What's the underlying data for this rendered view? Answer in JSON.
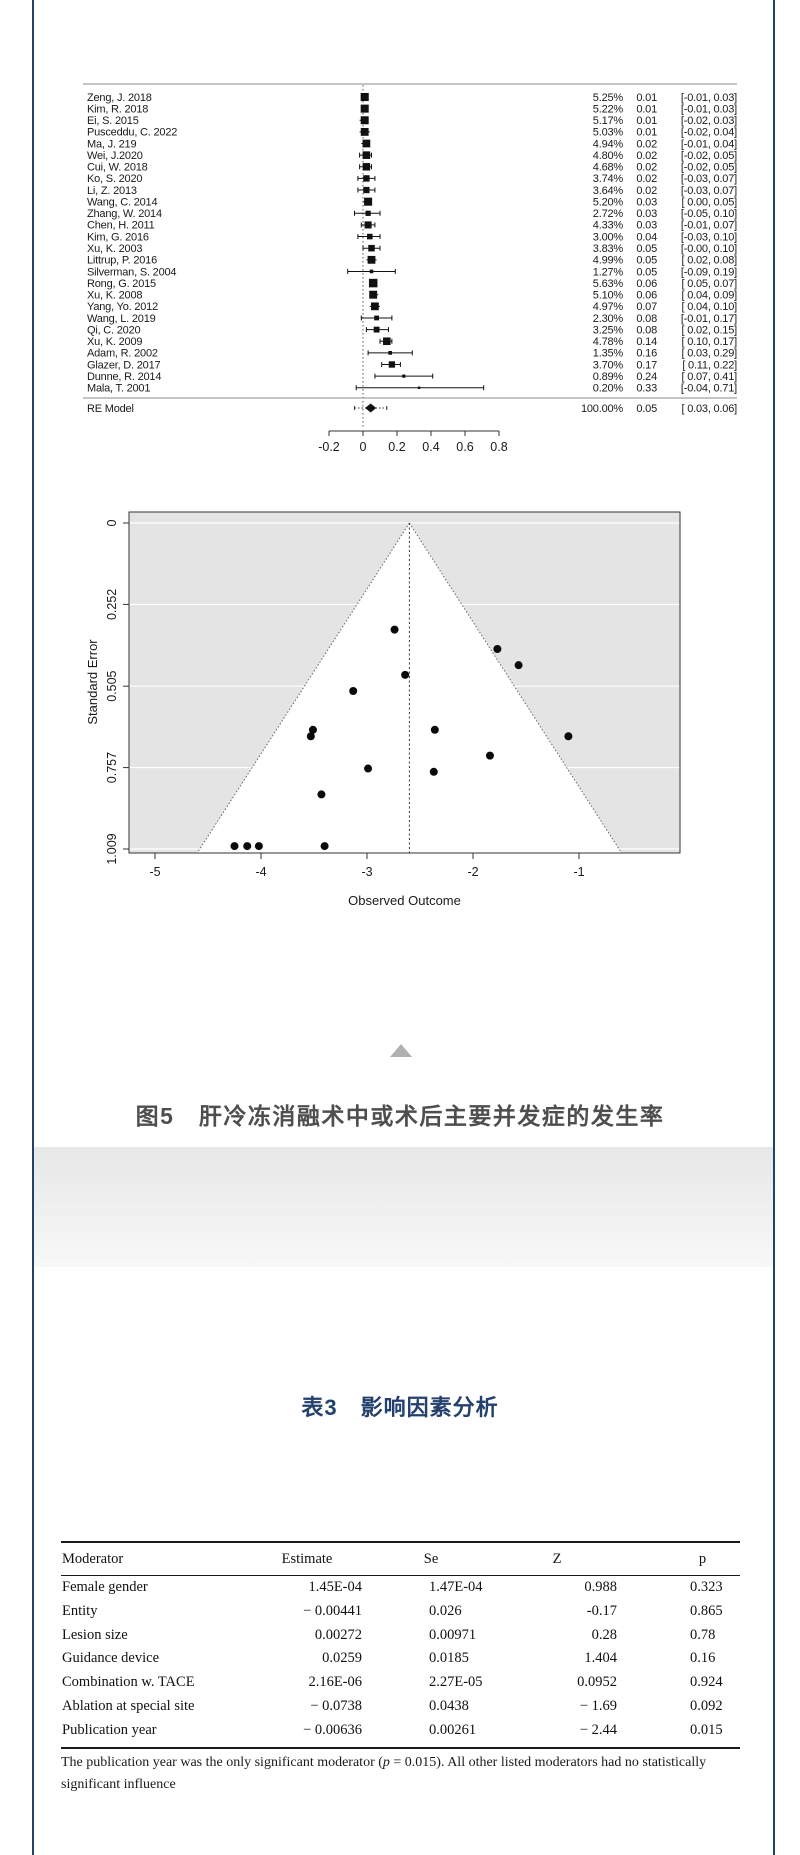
{
  "colors": {
    "accent_navy": "#24406d",
    "caption_gray": "#4e4e4e",
    "band_top": "#e7e7e7",
    "band_bottom": "#f8f8f8",
    "triangle_gray": "#b0b0b0"
  },
  "figure": {
    "caption": "图5　肝冷冻消融术中或术后主要并发症的发生率"
  },
  "table_section": {
    "title": "表3　影响因素分析"
  },
  "chart_data": [
    {
      "type": "forest",
      "xlim": [
        -0.2,
        0.8
      ],
      "xticks": [
        -0.2,
        0,
        0.2,
        0.4,
        0.6,
        0.8
      ],
      "zero_line": 0,
      "studies": [
        {
          "label": "Zeng, J. 2018",
          "weight": "5.25%",
          "est": 0.01,
          "est_text": "0.01",
          "ci": [
            -0.01,
            0.03
          ],
          "ci_text": "[-0.01, 0.03]"
        },
        {
          "label": "Kim, R. 2018",
          "weight": "5.22%",
          "est": 0.01,
          "est_text": "0.01",
          "ci": [
            -0.01,
            0.03
          ],
          "ci_text": "[-0.01, 0.03]"
        },
        {
          "label": "Ei, S. 2015",
          "weight": "5.17%",
          "est": 0.01,
          "est_text": "0.01",
          "ci": [
            -0.02,
            0.03
          ],
          "ci_text": "[-0.02, 0.03]"
        },
        {
          "label": "Pusceddu, C. 2022",
          "weight": "5.03%",
          "est": 0.01,
          "est_text": "0.01",
          "ci": [
            -0.02,
            0.04
          ],
          "ci_text": "[-0.02, 0.04]"
        },
        {
          "label": "Ma, J. 219",
          "weight": "4.94%",
          "est": 0.02,
          "est_text": "0.02",
          "ci": [
            -0.01,
            0.04
          ],
          "ci_text": "[-0.01, 0.04]"
        },
        {
          "label": "Wei, J.2020",
          "weight": "4.80%",
          "est": 0.02,
          "est_text": "0.02",
          "ci": [
            -0.02,
            0.05
          ],
          "ci_text": "[-0.02, 0.05]"
        },
        {
          "label": "Cui, W. 2018",
          "weight": "4.68%",
          "est": 0.02,
          "est_text": "0.02",
          "ci": [
            -0.02,
            0.05
          ],
          "ci_text": "[-0.02, 0.05]"
        },
        {
          "label": "Ko, S. 2020",
          "weight": "3.74%",
          "est": 0.02,
          "est_text": "0.02",
          "ci": [
            -0.03,
            0.07
          ],
          "ci_text": "[-0.03, 0.07]"
        },
        {
          "label": "Li, Z. 2013",
          "weight": "3.64%",
          "est": 0.02,
          "est_text": "0.02",
          "ci": [
            -0.03,
            0.07
          ],
          "ci_text": "[-0.03, 0.07]"
        },
        {
          "label": "Wang, C. 2014",
          "weight": "5.20%",
          "est": 0.03,
          "est_text": "0.03",
          "ci": [
            0.0,
            0.05
          ],
          "ci_text": "[ 0.00, 0.05]"
        },
        {
          "label": "Zhang, W. 2014",
          "weight": "2.72%",
          "est": 0.03,
          "est_text": "0.03",
          "ci": [
            -0.05,
            0.1
          ],
          "ci_text": "[-0.05, 0.10]"
        },
        {
          "label": "Chen, H. 2011",
          "weight": "4.33%",
          "est": 0.03,
          "est_text": "0.03",
          "ci": [
            -0.01,
            0.07
          ],
          "ci_text": "[-0.01, 0.07]"
        },
        {
          "label": "Kim, G. 2016",
          "weight": "3.00%",
          "est": 0.04,
          "est_text": "0.04",
          "ci": [
            -0.03,
            0.1
          ],
          "ci_text": "[-0.03, 0.10]"
        },
        {
          "label": "Xu, K. 2003",
          "weight": "3.83%",
          "est": 0.05,
          "est_text": "0.05",
          "ci": [
            0.0,
            0.1
          ],
          "ci_text": "[-0.00, 0.10]"
        },
        {
          "label": "Littrup, P. 2016",
          "weight": "4.99%",
          "est": 0.05,
          "est_text": "0.05",
          "ci": [
            0.02,
            0.08
          ],
          "ci_text": "[ 0.02, 0.08]"
        },
        {
          "label": "Silverman, S. 2004",
          "weight": "1.27%",
          "est": 0.05,
          "est_text": "0.05",
          "ci": [
            -0.09,
            0.19
          ],
          "ci_text": "[-0.09, 0.19]"
        },
        {
          "label": "Rong, G. 2015",
          "weight": "5.63%",
          "est": 0.06,
          "est_text": "0.06",
          "ci": [
            0.05,
            0.07
          ],
          "ci_text": "[ 0.05, 0.07]"
        },
        {
          "label": "Xu, K. 2008",
          "weight": "5.10%",
          "est": 0.06,
          "est_text": "0.06",
          "ci": [
            0.04,
            0.09
          ],
          "ci_text": "[ 0.04, 0.09]"
        },
        {
          "label": "Yang, Yo. 2012",
          "weight": "4.97%",
          "est": 0.07,
          "est_text": "0.07",
          "ci": [
            0.04,
            0.1
          ],
          "ci_text": "[ 0.04, 0.10]"
        },
        {
          "label": "Wang, L. 2019",
          "weight": "2.30%",
          "est": 0.08,
          "est_text": "0.08",
          "ci": [
            -0.01,
            0.17
          ],
          "ci_text": "[-0.01, 0.17]"
        },
        {
          "label": "Qi, C. 2020",
          "weight": "3.25%",
          "est": 0.08,
          "est_text": "0.08",
          "ci": [
            0.02,
            0.15
          ],
          "ci_text": "[ 0.02, 0.15]"
        },
        {
          "label": "Xu, K. 2009",
          "weight": "4.78%",
          "est": 0.14,
          "est_text": "0.14",
          "ci": [
            0.1,
            0.17
          ],
          "ci_text": "[ 0.10, 0.17]"
        },
        {
          "label": "Adam, R. 2002",
          "weight": "1.35%",
          "est": 0.16,
          "est_text": "0.16",
          "ci": [
            0.03,
            0.29
          ],
          "ci_text": "[ 0.03, 0.29]"
        },
        {
          "label": "Glazer, D. 2017",
          "weight": "3.70%",
          "est": 0.17,
          "est_text": "0.17",
          "ci": [
            0.11,
            0.22
          ],
          "ci_text": "[ 0.11, 0.22]"
        },
        {
          "label": "Dunne, R. 2014",
          "weight": "0.89%",
          "est": 0.24,
          "est_text": "0.24",
          "ci": [
            0.07,
            0.41
          ],
          "ci_text": "[ 0.07, 0.41]"
        },
        {
          "label": "Mala, T. 2001",
          "weight": "0.20%",
          "est": 0.33,
          "est_text": "0.33",
          "ci": [
            -0.04,
            0.71
          ],
          "ci_text": "[-0.04, 0.71]"
        }
      ],
      "summary": {
        "label": "RE Model",
        "weight": "100.00%",
        "est": 0.05,
        "est_text": "0.05",
        "ci": [
          0.03,
          0.06
        ],
        "ci_text": "[ 0.03, 0.06]",
        "pred_interval": [
          -0.05,
          0.14
        ]
      }
    },
    {
      "type": "scatter",
      "xlabel": "Observed Outcome",
      "ylabel": "Standard Error",
      "xticks": [
        -5,
        -4,
        -3,
        -2,
        -1
      ],
      "yticks": [
        0,
        0.252,
        0.505,
        0.757,
        1.009
      ],
      "xlim": [
        -5.25,
        -0.05
      ],
      "ylim": [
        0,
        1.021
      ],
      "center_line": -2.6,
      "ci_multiplier": 1.96,
      "points": [
        [
          -4.25,
          1.0
        ],
        [
          -4.13,
          1.0
        ],
        [
          -4.02,
          1.0
        ],
        [
          -3.4,
          1.0
        ],
        [
          -3.43,
          0.84
        ],
        [
          -2.99,
          0.76
        ],
        [
          -3.53,
          0.66
        ],
        [
          -3.51,
          0.64
        ],
        [
          -3.13,
          0.52
        ],
        [
          -2.64,
          0.47
        ],
        [
          -2.74,
          0.33
        ],
        [
          -2.37,
          0.77
        ],
        [
          -2.36,
          0.64
        ],
        [
          -1.84,
          0.72
        ],
        [
          -1.77,
          0.39
        ],
        [
          -1.57,
          0.44
        ],
        [
          -1.1,
          0.66
        ]
      ]
    }
  ],
  "moderator_table": {
    "headers": [
      "Moderator",
      "Estimate",
      "Se",
      "Z",
      "p"
    ],
    "rows": [
      [
        "Female gender",
        "1.45E-04",
        "1.47E-04",
        "0.988",
        "0.323"
      ],
      [
        "Entity",
        "− 0.00441",
        "0.026",
        "-0.17",
        "0.865"
      ],
      [
        "Lesion size",
        "0.00272",
        "0.00971",
        "0.28",
        "0.78"
      ],
      [
        "Guidance device",
        "0.0259",
        "0.0185",
        "1.404",
        "0.16"
      ],
      [
        "Combination w. TACE",
        "2.16E-06",
        "2.27E-05",
        "0.0952",
        "0.924"
      ],
      [
        "Ablation at special site",
        "− 0.0738",
        "0.0438",
        "− 1.69",
        "0.092"
      ],
      [
        "Publication year",
        "− 0.00636",
        "0.00261",
        "− 2.44",
        "0.015"
      ]
    ],
    "footnote": {
      "pre": "The publication year was the only significant moderator (",
      "p_symbol": "p",
      "post": " = 0.015). All other listed moderators had no statistically significant influence"
    }
  }
}
